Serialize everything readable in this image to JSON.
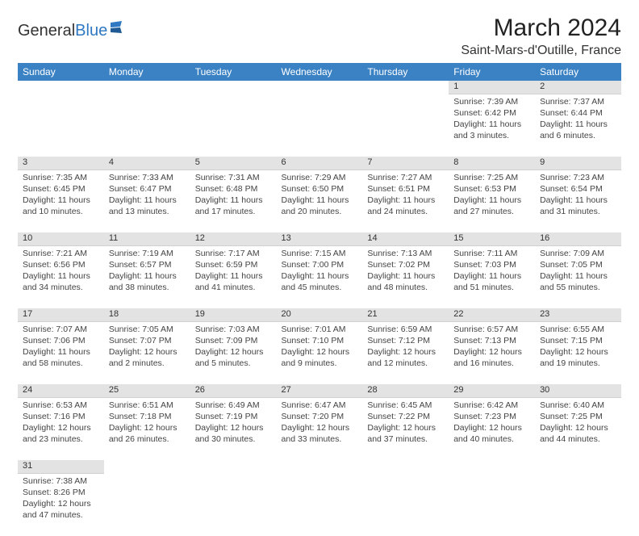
{
  "brand": {
    "part1": "General",
    "part2": "Blue"
  },
  "title": "March 2024",
  "location": "Saint-Mars-d'Outille, France",
  "colors": {
    "header_bg": "#3b82c4",
    "header_text": "#ffffff",
    "daynum_bg": "#e3e3e3",
    "text": "#333333",
    "brand_blue": "#2f78c2"
  },
  "weekdays": [
    "Sunday",
    "Monday",
    "Tuesday",
    "Wednesday",
    "Thursday",
    "Friday",
    "Saturday"
  ],
  "weeks": [
    [
      null,
      null,
      null,
      null,
      null,
      {
        "d": "1",
        "sr": "7:39 AM",
        "ss": "6:42 PM",
        "dl": "11 hours and 3 minutes."
      },
      {
        "d": "2",
        "sr": "7:37 AM",
        "ss": "6:44 PM",
        "dl": "11 hours and 6 minutes."
      }
    ],
    [
      {
        "d": "3",
        "sr": "7:35 AM",
        "ss": "6:45 PM",
        "dl": "11 hours and 10 minutes."
      },
      {
        "d": "4",
        "sr": "7:33 AM",
        "ss": "6:47 PM",
        "dl": "11 hours and 13 minutes."
      },
      {
        "d": "5",
        "sr": "7:31 AM",
        "ss": "6:48 PM",
        "dl": "11 hours and 17 minutes."
      },
      {
        "d": "6",
        "sr": "7:29 AM",
        "ss": "6:50 PM",
        "dl": "11 hours and 20 minutes."
      },
      {
        "d": "7",
        "sr": "7:27 AM",
        "ss": "6:51 PM",
        "dl": "11 hours and 24 minutes."
      },
      {
        "d": "8",
        "sr": "7:25 AM",
        "ss": "6:53 PM",
        "dl": "11 hours and 27 minutes."
      },
      {
        "d": "9",
        "sr": "7:23 AM",
        "ss": "6:54 PM",
        "dl": "11 hours and 31 minutes."
      }
    ],
    [
      {
        "d": "10",
        "sr": "7:21 AM",
        "ss": "6:56 PM",
        "dl": "11 hours and 34 minutes."
      },
      {
        "d": "11",
        "sr": "7:19 AM",
        "ss": "6:57 PM",
        "dl": "11 hours and 38 minutes."
      },
      {
        "d": "12",
        "sr": "7:17 AM",
        "ss": "6:59 PM",
        "dl": "11 hours and 41 minutes."
      },
      {
        "d": "13",
        "sr": "7:15 AM",
        "ss": "7:00 PM",
        "dl": "11 hours and 45 minutes."
      },
      {
        "d": "14",
        "sr": "7:13 AM",
        "ss": "7:02 PM",
        "dl": "11 hours and 48 minutes."
      },
      {
        "d": "15",
        "sr": "7:11 AM",
        "ss": "7:03 PM",
        "dl": "11 hours and 51 minutes."
      },
      {
        "d": "16",
        "sr": "7:09 AM",
        "ss": "7:05 PM",
        "dl": "11 hours and 55 minutes."
      }
    ],
    [
      {
        "d": "17",
        "sr": "7:07 AM",
        "ss": "7:06 PM",
        "dl": "11 hours and 58 minutes."
      },
      {
        "d": "18",
        "sr": "7:05 AM",
        "ss": "7:07 PM",
        "dl": "12 hours and 2 minutes."
      },
      {
        "d": "19",
        "sr": "7:03 AM",
        "ss": "7:09 PM",
        "dl": "12 hours and 5 minutes."
      },
      {
        "d": "20",
        "sr": "7:01 AM",
        "ss": "7:10 PM",
        "dl": "12 hours and 9 minutes."
      },
      {
        "d": "21",
        "sr": "6:59 AM",
        "ss": "7:12 PM",
        "dl": "12 hours and 12 minutes."
      },
      {
        "d": "22",
        "sr": "6:57 AM",
        "ss": "7:13 PM",
        "dl": "12 hours and 16 minutes."
      },
      {
        "d": "23",
        "sr": "6:55 AM",
        "ss": "7:15 PM",
        "dl": "12 hours and 19 minutes."
      }
    ],
    [
      {
        "d": "24",
        "sr": "6:53 AM",
        "ss": "7:16 PM",
        "dl": "12 hours and 23 minutes."
      },
      {
        "d": "25",
        "sr": "6:51 AM",
        "ss": "7:18 PM",
        "dl": "12 hours and 26 minutes."
      },
      {
        "d": "26",
        "sr": "6:49 AM",
        "ss": "7:19 PM",
        "dl": "12 hours and 30 minutes."
      },
      {
        "d": "27",
        "sr": "6:47 AM",
        "ss": "7:20 PM",
        "dl": "12 hours and 33 minutes."
      },
      {
        "d": "28",
        "sr": "6:45 AM",
        "ss": "7:22 PM",
        "dl": "12 hours and 37 minutes."
      },
      {
        "d": "29",
        "sr": "6:42 AM",
        "ss": "7:23 PM",
        "dl": "12 hours and 40 minutes."
      },
      {
        "d": "30",
        "sr": "6:40 AM",
        "ss": "7:25 PM",
        "dl": "12 hours and 44 minutes."
      }
    ],
    [
      {
        "d": "31",
        "sr": "7:38 AM",
        "ss": "8:26 PM",
        "dl": "12 hours and 47 minutes."
      },
      null,
      null,
      null,
      null,
      null,
      null
    ]
  ],
  "labels": {
    "sunrise": "Sunrise:",
    "sunset": "Sunset:",
    "daylight": "Daylight:"
  }
}
